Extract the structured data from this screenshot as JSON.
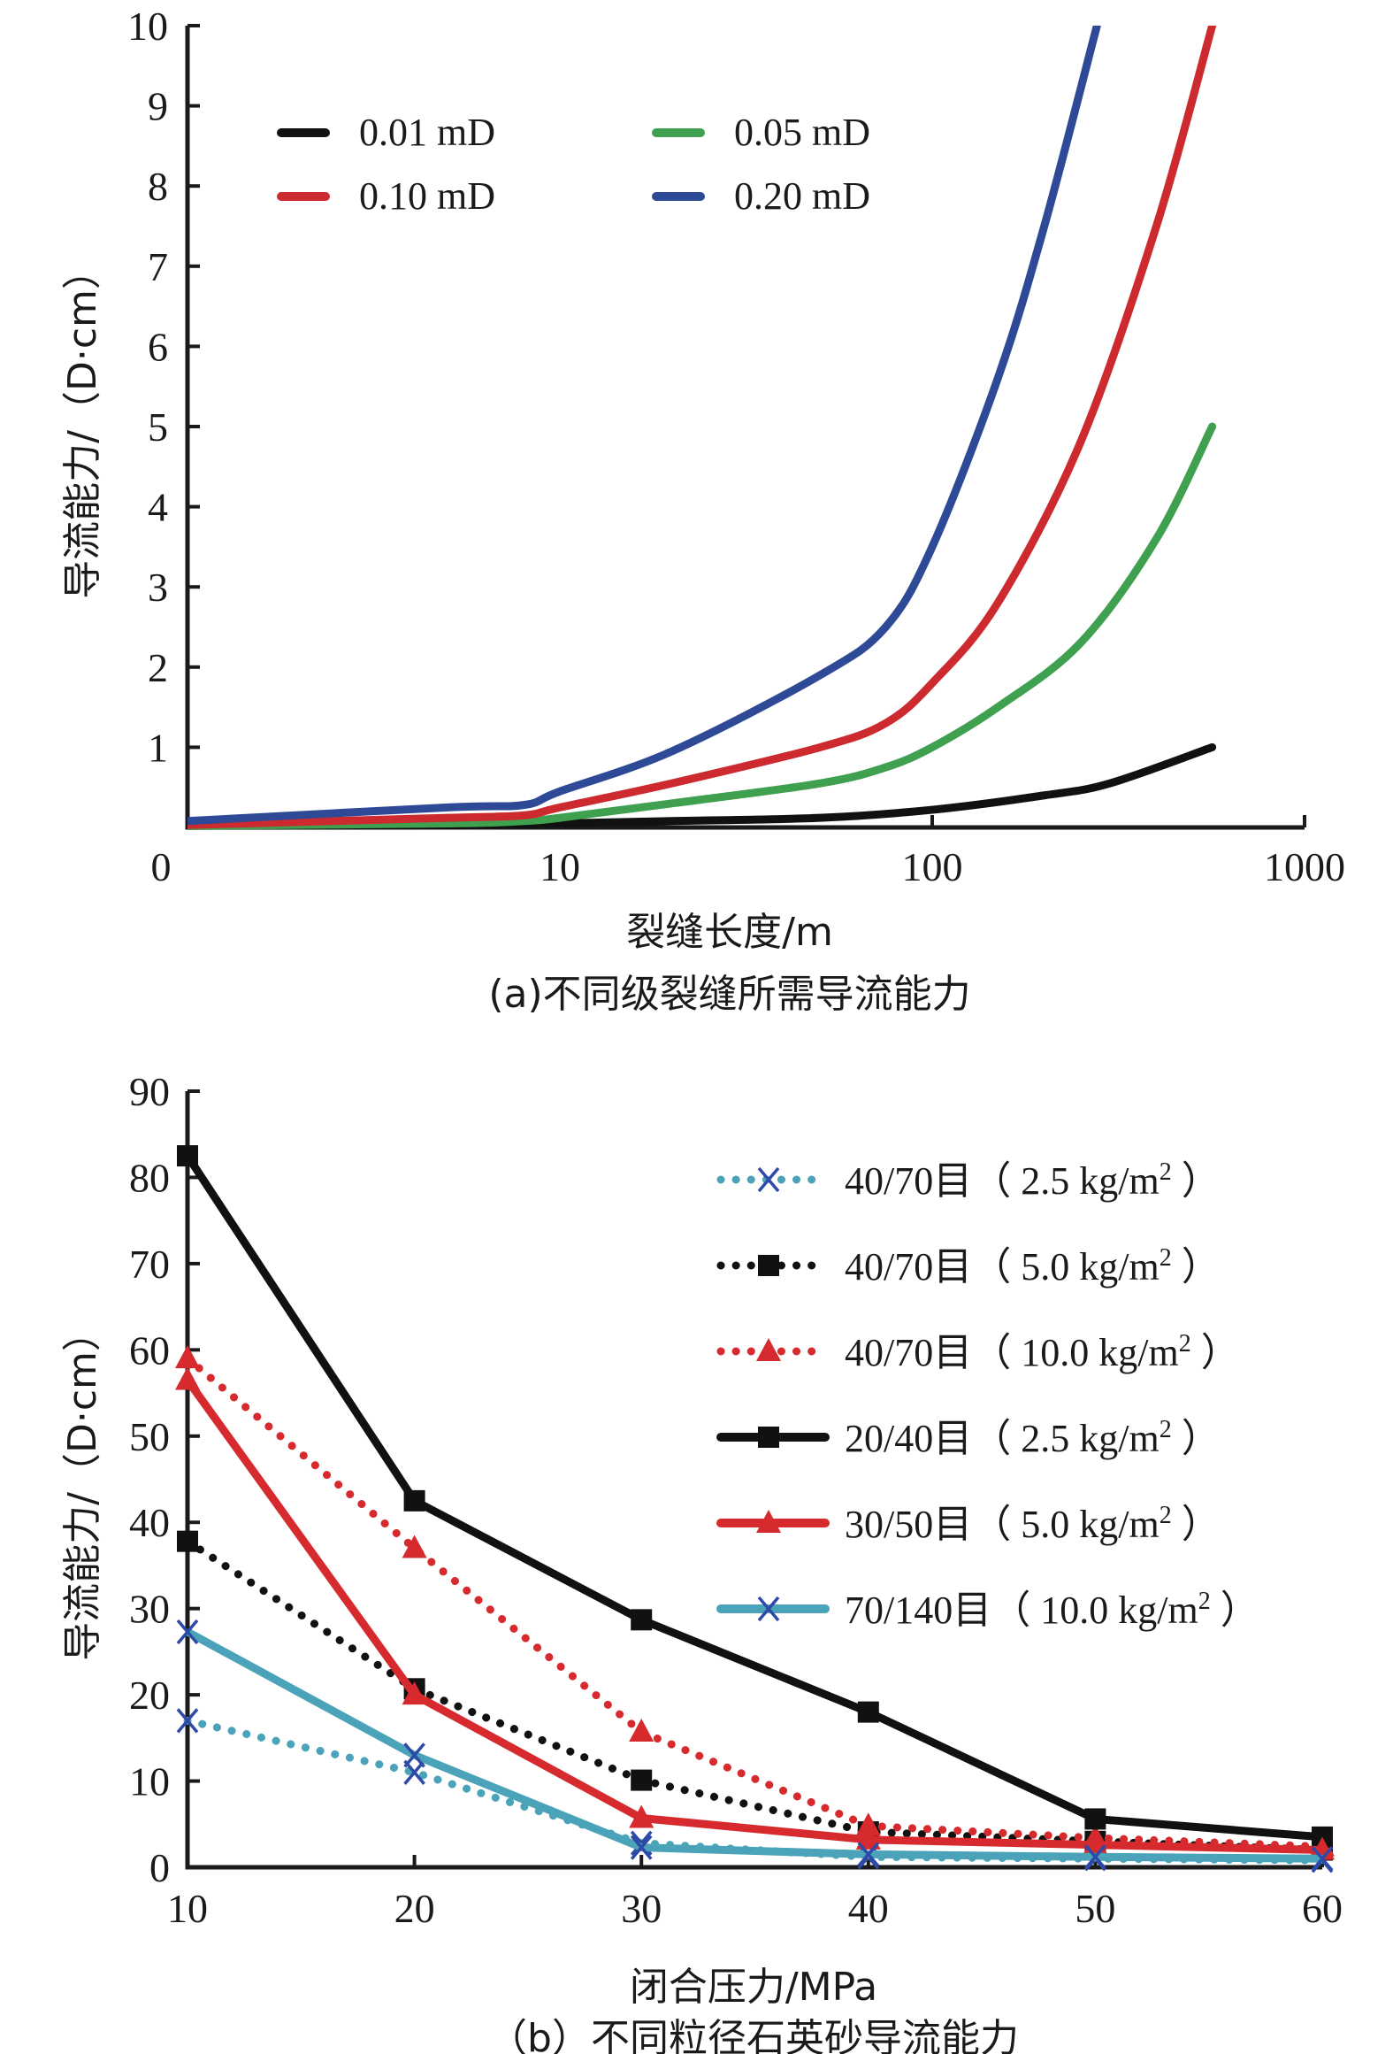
{
  "chart_data": [
    {
      "id": "a",
      "type": "line",
      "title": "",
      "caption": "(a)不同级裂缝所需导流能力",
      "xlabel": "裂缝长度/m",
      "ylabel": "导流能力/（D·cm）",
      "xscale": "log",
      "xlim": [
        1,
        1000
      ],
      "ylim": [
        0,
        10
      ],
      "x_ticks": [
        1,
        10,
        100,
        1000
      ],
      "x_tick_labels": [
        "0",
        "10",
        "100",
        "1000"
      ],
      "y_ticks": [
        1,
        2,
        3,
        4,
        5,
        6,
        7,
        8,
        9,
        10
      ],
      "y_tick_labels": [
        "1",
        "2",
        "3",
        "4",
        "5",
        "6",
        "7",
        "8",
        "9",
        "10"
      ],
      "y_zero_label": "0",
      "grid": false,
      "legend_placement": "top-left",
      "series": [
        {
          "name": "0.01 mD",
          "color": "#111111",
          "x": [
            1,
            5,
            8,
            10,
            20,
            50,
            100,
            200,
            300,
            565
          ],
          "y": [
            0.02,
            0.03,
            0.04,
            0.05,
            0.08,
            0.12,
            0.22,
            0.4,
            0.55,
            1.0
          ]
        },
        {
          "name": "0.05 mD",
          "color": "#3fa04f",
          "x": [
            1,
            5,
            8,
            10,
            20,
            50,
            75,
            100,
            150,
            250,
            400,
            565
          ],
          "y": [
            0.02,
            0.05,
            0.08,
            0.12,
            0.3,
            0.55,
            0.75,
            1.0,
            1.5,
            2.3,
            3.6,
            5.0
          ]
        },
        {
          "name": "0.10 mD",
          "color": "#cc2a2e",
          "x": [
            1,
            5,
            8,
            10,
            20,
            50,
            75,
            100,
            150,
            250,
            400,
            565
          ],
          "y": [
            0.03,
            0.12,
            0.15,
            0.25,
            0.55,
            1.0,
            1.3,
            1.8,
            2.8,
            4.8,
            7.5,
            10.0
          ]
        },
        {
          "name": "0.20 mD",
          "color": "#2e4a97",
          "x": [
            1,
            5,
            8,
            10,
            20,
            50,
            75,
            100,
            150,
            200,
            277
          ],
          "y": [
            0.08,
            0.25,
            0.28,
            0.45,
            0.95,
            1.9,
            2.5,
            3.5,
            5.6,
            7.5,
            10.0
          ]
        }
      ]
    },
    {
      "id": "b",
      "type": "line",
      "title": "",
      "caption": "（b）不同粒径石英砂导流能力",
      "xlabel": "闭合压力/MPa",
      "ylabel": "导流能力/（D·cm）",
      "xlim": [
        10,
        60
      ],
      "ylim": [
        0,
        90
      ],
      "x_ticks": [
        10,
        20,
        30,
        40,
        50,
        60
      ],
      "x_tick_labels": [
        "10",
        "20",
        "30",
        "40",
        "50",
        "60"
      ],
      "y_ticks": [
        0,
        10,
        20,
        30,
        40,
        50,
        60,
        70,
        80,
        90
      ],
      "y_tick_labels": [
        "0",
        "10",
        "20",
        "30",
        "40",
        "50",
        "60",
        "70",
        "80",
        "90"
      ],
      "grid": false,
      "legend_placement": "top-right",
      "x": [
        10,
        20,
        30,
        40,
        50,
        60
      ],
      "series": [
        {
          "name": "40/70目（2.5 kg/m²）",
          "label_main": "40/70目（ 2.5 kg/m",
          "label_sup": "2",
          "label_end": " ）",
          "line_color": "#4aa3b8",
          "marker_color": "#2e4aa8",
          "dash": "dotted",
          "marker": "x",
          "values": [
            17,
            11,
            2.8,
            1.2,
            1.0,
            0.8
          ]
        },
        {
          "name": "40/70目（5.0 kg/m²）",
          "label_main": "40/70目（ 5.0 kg/m",
          "label_sup": "2",
          "label_end": " ）",
          "line_color": "#111111",
          "marker_color": "#111111",
          "dash": "dotted",
          "marker": "square",
          "values": [
            37.8,
            20.7,
            10.1,
            4.1,
            3.0,
            2.0
          ]
        },
        {
          "name": "40/70目（10.0 kg/m²）",
          "label_main": "40/70目（ 10.0 kg/m",
          "label_sup": "2",
          "label_end": " ）",
          "line_color": "#d62a2e",
          "marker_color": "#d62a2e",
          "dash": "dotted",
          "marker": "triangle",
          "values": [
            59,
            37,
            15.7,
            4.8,
            3.4,
            2.4
          ]
        },
        {
          "name": "20/40目（2.5 kg/m²）",
          "label_main": "20/40目（ 2.5 kg/m",
          "label_sup": "2",
          "label_end": " ）",
          "line_color": "#111111",
          "marker_color": "#111111",
          "dash": "solid",
          "marker": "square",
          "values": [
            82.5,
            42.5,
            28.7,
            18,
            5.6,
            3.5
          ]
        },
        {
          "name": "30/50目（5.0 kg/m²）",
          "label_main": "30/50目（ 5.0 kg/m",
          "label_sup": "2",
          "label_end": " ）",
          "line_color": "#d62a2e",
          "marker_color": "#d62a2e",
          "dash": "solid",
          "marker": "triangle",
          "values": [
            56.5,
            20,
            5.7,
            3.2,
            2.6,
            2.0
          ]
        },
        {
          "name": "70/140目（10.0 kg/m²）",
          "label_main": "70/140目（ 10.0 kg/m",
          "label_sup": "2",
          "label_end": " ）",
          "line_color": "#4aa3b8",
          "marker_color": "#2e4aa8",
          "dash": "solid",
          "marker": "x",
          "values": [
            27.3,
            13,
            2.3,
            1.5,
            1.2,
            1.0
          ]
        }
      ]
    }
  ]
}
